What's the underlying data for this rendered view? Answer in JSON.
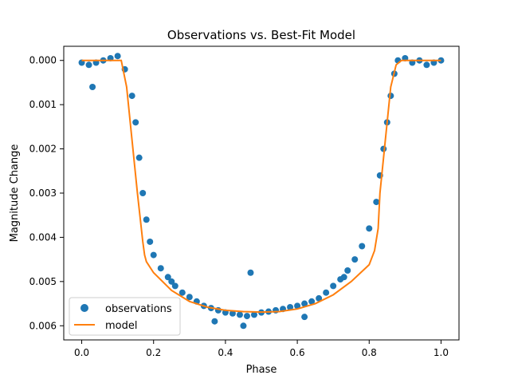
{
  "chart_data": {
    "type": "scatter",
    "title": "Observations vs. Best-Fit Model",
    "xlabel": "Phase",
    "ylabel": "Magnitude Change",
    "xlim": [
      -0.05,
      1.05
    ],
    "ylim": [
      0.00632,
      -0.00032
    ],
    "y_inverted": true,
    "xticks": [
      0.0,
      0.2,
      0.4,
      0.6,
      0.8,
      1.0
    ],
    "xtick_labels": [
      "0.0",
      "0.2",
      "0.4",
      "0.6",
      "0.8",
      "1.0"
    ],
    "yticks": [
      0.0,
      0.001,
      0.002,
      0.003,
      0.004,
      0.005,
      0.006
    ],
    "ytick_labels": [
      "0.000",
      "0.001",
      "0.002",
      "0.003",
      "0.004",
      "0.005",
      "0.006"
    ],
    "grid": false,
    "legend_position": "lower-left",
    "colors": {
      "observations": "#1f77b4",
      "model": "#ff7f0e"
    },
    "series": [
      {
        "name": "observations",
        "kind": "scatter",
        "x": [
          0.0,
          0.02,
          0.04,
          0.06,
          0.08,
          0.1,
          0.12,
          0.14,
          0.15,
          0.16,
          0.17,
          0.18,
          0.19,
          0.2,
          0.22,
          0.24,
          0.26,
          0.28,
          0.3,
          0.32,
          0.34,
          0.36,
          0.38,
          0.4,
          0.42,
          0.44,
          0.46,
          0.48,
          0.5,
          0.52,
          0.54,
          0.56,
          0.58,
          0.6,
          0.62,
          0.64,
          0.66,
          0.68,
          0.7,
          0.72,
          0.74,
          0.76,
          0.78,
          0.8,
          0.82,
          0.83,
          0.84,
          0.85,
          0.86,
          0.87,
          0.88,
          0.9,
          0.92,
          0.94,
          0.96,
          0.98,
          1.0,
          0.03,
          0.47,
          0.25,
          0.37,
          0.62,
          0.73,
          0.45
        ],
        "y": [
          5e-05,
          0.0001,
          5e-05,
          0.0,
          -5e-05,
          -0.0001,
          0.0002,
          0.0008,
          0.0014,
          0.0022,
          0.003,
          0.0036,
          0.0041,
          0.0044,
          0.0047,
          0.0049,
          0.0051,
          0.00525,
          0.00535,
          0.00545,
          0.00555,
          0.0056,
          0.00565,
          0.0057,
          0.00572,
          0.00575,
          0.00578,
          0.00575,
          0.0057,
          0.00568,
          0.00565,
          0.00562,
          0.00558,
          0.00555,
          0.0055,
          0.00545,
          0.00538,
          0.00525,
          0.0051,
          0.00495,
          0.00475,
          0.0045,
          0.0042,
          0.0038,
          0.0032,
          0.0026,
          0.002,
          0.0014,
          0.0008,
          0.0003,
          0.0,
          -5e-05,
          5e-05,
          0.0,
          0.0001,
          5e-05,
          0.0,
          0.0006,
          0.0048,
          0.005,
          0.0059,
          0.0058,
          0.0049,
          0.006
        ]
      },
      {
        "name": "model",
        "kind": "line",
        "x": [
          0.0,
          0.05,
          0.11,
          0.125,
          0.14,
          0.155,
          0.17,
          0.175,
          0.18,
          0.2,
          0.25,
          0.3,
          0.35,
          0.4,
          0.45,
          0.5,
          0.55,
          0.6,
          0.65,
          0.7,
          0.75,
          0.8,
          0.815,
          0.825,
          0.83,
          0.845,
          0.86,
          0.875,
          0.89,
          0.95,
          1.0
        ],
        "y": [
          0.0,
          0.0,
          0.0,
          0.0006,
          0.0018,
          0.003,
          0.0041,
          0.0044,
          0.00455,
          0.0048,
          0.0052,
          0.00545,
          0.00558,
          0.00565,
          0.00568,
          0.00569,
          0.00568,
          0.00562,
          0.0055,
          0.0053,
          0.005,
          0.00462,
          0.0043,
          0.0038,
          0.003,
          0.0018,
          0.0006,
          0.0001,
          0.0,
          0.0,
          0.0
        ]
      }
    ],
    "legend": [
      {
        "name": "observations",
        "marker": "circle"
      },
      {
        "name": "model",
        "marker": "line"
      }
    ]
  }
}
